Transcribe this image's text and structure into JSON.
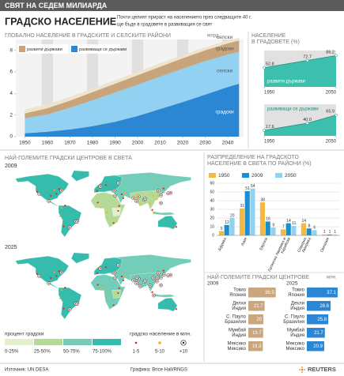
{
  "header": {
    "banner": "СВЯТ НА СЕДЕМ МИЛИАРДА",
    "title": "ГРАДСКО НАСЕЛЕНИЕ",
    "subtitle": [
      "Почти целият прираст на населението през следващите 40 г.",
      "ще бъде в градовете в развиващия се свят"
    ]
  },
  "chart_data": [
    {
      "type": "area",
      "title": "ГЛОБАЛНО НАСЕЛЕНИЕ В ГРАДСКИТЕ И СЕЛСКИТЕ РАЙОНИ",
      "unit": "млрд.",
      "legend": [
        {
          "label": "развити държави",
          "color": "#c8a47c"
        },
        {
          "label": "развиващи се държави",
          "color": "#2b87d3"
        }
      ],
      "x": [
        1950,
        1960,
        1970,
        1980,
        1990,
        2000,
        2010,
        2020,
        2030,
        2040,
        2045
      ],
      "series": [
        {
          "name": "градски",
          "color": "#2b87d3",
          "values": [
            0.31,
            0.46,
            0.67,
            0.97,
            1.38,
            1.91,
            2.56,
            3.2,
            3.9,
            4.6,
            4.9
          ]
        },
        {
          "name": "селски",
          "color": "#92d1f1",
          "values": [
            1.4,
            1.6,
            2.0,
            2.4,
            2.7,
            2.9,
            3.0,
            3.1,
            3.1,
            3.0,
            2.95
          ]
        },
        {
          "name": "градски",
          "color": "#c8a47c",
          "values": [
            0.44,
            0.57,
            0.67,
            0.75,
            0.82,
            0.88,
            0.92,
            0.96,
            1.0,
            1.04,
            1.06
          ]
        },
        {
          "name": "селски",
          "color": "#efe3cb",
          "values": [
            0.37,
            0.35,
            0.34,
            0.33,
            0.32,
            0.31,
            0.31,
            0.29,
            0.27,
            0.26,
            0.25
          ]
        }
      ],
      "xlim": [
        1946,
        2047
      ],
      "ylim": [
        0,
        9
      ],
      "xticks": [
        1950,
        1960,
        1970,
        1980,
        1990,
        2000,
        2010,
        2020,
        2030,
        2040
      ],
      "yticks": [
        0,
        2,
        4,
        6,
        8
      ]
    },
    {
      "type": "area",
      "title": [
        "НАСЕЛЕНИЕ",
        "В ГРАДОВЕТЕ (%)"
      ],
      "label": "развити държави",
      "color": "#3dbfae",
      "x": [
        1950,
        2010,
        2050
      ],
      "values": [
        52.8,
        72.7,
        86.2
      ],
      "value_labels": [
        "52.8",
        "72.7",
        "86.2"
      ],
      "xlim": [
        1950,
        2050
      ],
      "ylim": [
        0,
        100
      ],
      "xticks": [
        1950,
        2050
      ]
    },
    {
      "type": "area",
      "label": "развиващи се държави",
      "color": "#3dbfae",
      "x": [
        1950,
        2010,
        2050
      ],
      "values": [
        17.6,
        40,
        65.9
      ],
      "value_labels": [
        "17.6",
        "40.0",
        "65.9"
      ],
      "xlim": [
        1950,
        2050
      ],
      "ylim": [
        0,
        100
      ],
      "xticks": [
        1950,
        2050
      ]
    },
    {
      "type": "bar",
      "title": [
        "РАЗПРЕДЕЛЕНИЕ НА ГРАДСКОТО",
        "НАСЕЛЕНИЕ В СВЕТА ПО РАЙОНИ (%)"
      ],
      "categories": [
        [
          "Африка"
        ],
        [
          "Азия"
        ],
        [
          "Европа"
        ],
        [
          "Латинска Америка и",
          "Карибски"
        ],
        [
          "Северна",
          "Америка"
        ],
        [
          "Океания"
        ]
      ],
      "series": [
        {
          "name": "1950",
          "color": "#f4b942",
          "values": [
            5,
            31,
            38,
            7,
            14,
            1
          ]
        },
        {
          "name": "2009",
          "color": "#1b8ed1",
          "values": [
            12,
            51,
            16,
            14,
            8,
            1
          ]
        },
        {
          "name": "2050",
          "color": "#8fd3f0",
          "values": [
            20,
            54,
            9,
            11,
            6,
            1
          ]
        }
      ],
      "ylim": [
        0,
        60
      ],
      "yticks": [
        0,
        10,
        20,
        30,
        40,
        50,
        60
      ],
      "grid": true
    },
    {
      "type": "hbar",
      "title": "НАЙ-ГОЛЕМИТЕ ГРАДСКИ ЦЕНТРОВЕ",
      "unit": "млн.",
      "year": "2009",
      "color": "#c9a67d",
      "categories": [
        [
          "Токио",
          "Япония"
        ],
        [
          "Делхи",
          "Индия"
        ],
        [
          "С. Пауло",
          "Бразилия"
        ],
        [
          "Мумбай",
          "Индия"
        ],
        [
          "Мексико",
          "Мексико"
        ]
      ],
      "values": [
        36.5,
        21.7,
        20.0,
        19.7,
        19.3
      ],
      "xlim": [
        0,
        40
      ]
    },
    {
      "type": "hbar",
      "year": "2025",
      "color": "#2b87d3",
      "categories": [
        [
          "Токио",
          "Япония"
        ],
        [
          "Дехли",
          "Индия"
        ],
        [
          "С. Пауло",
          "Бразилия"
        ],
        [
          "Мумбай",
          "Индия"
        ],
        [
          "Мексико",
          "Мексико"
        ]
      ],
      "values": [
        37.1,
        28.6,
        25.8,
        21.7,
        20.9
      ],
      "xlim": [
        0,
        40
      ]
    }
  ],
  "maps": {
    "title": "НАЙ-ГОЛЕМИТЕ ГРАДСКИ ЦЕНТРОВЕ В СВЕТА",
    "years": [
      "2009",
      "2025"
    ],
    "legend": {
      "title": "процент градски",
      "classes": [
        {
          "label": "0-25%",
          "color": "#e4efcb"
        },
        {
          "label": "25-50%",
          "color": "#b5da98"
        },
        {
          "label": "50-75%",
          "color": "#74cdb8"
        },
        {
          "label": "75-100%",
          "color": "#36bcac"
        }
      ]
    },
    "size_legend": {
      "title": "градско население в млн.",
      "classes": [
        {
          "label": "1-5",
          "color": "#e2231a"
        },
        {
          "label": "5-10",
          "color": "#f5b21e"
        },
        {
          "label": "+10",
          "color": "#222222"
        }
      ]
    }
  },
  "footer": {
    "source": "Източник: UN DESA",
    "credit": "Графика: Brice Hall/RNGS",
    "brand": "REUTERS"
  }
}
